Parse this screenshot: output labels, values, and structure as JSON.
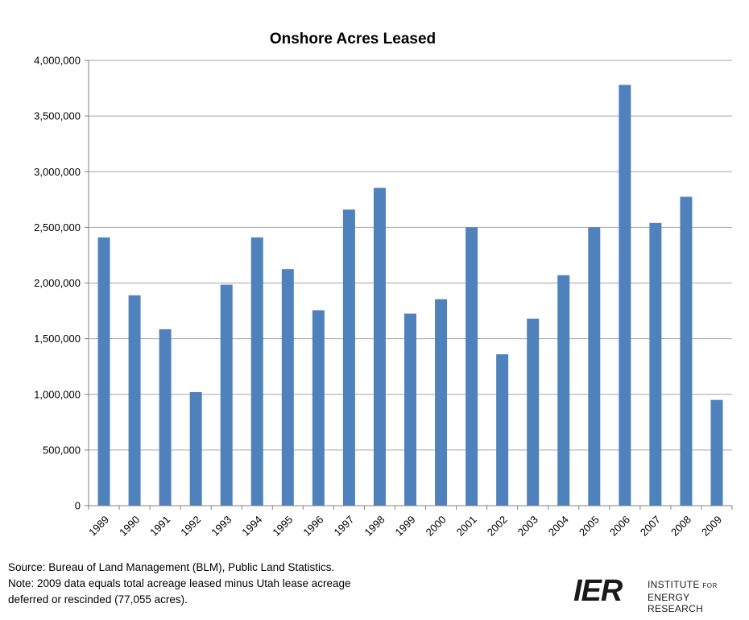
{
  "chart_data": {
    "type": "bar",
    "title": "Onshore Acres Leased",
    "categories": [
      "1989",
      "1990",
      "1991",
      "1992",
      "1993",
      "1994",
      "1995",
      "1996",
      "1997",
      "1998",
      "1999",
      "2000",
      "2001",
      "2002",
      "2003",
      "2004",
      "2005",
      "2006",
      "2007",
      "2008",
      "2009"
    ],
    "values": [
      2410000,
      1890000,
      1585000,
      1020000,
      1985000,
      2410000,
      2125000,
      1755000,
      2660000,
      2855000,
      1725000,
      1855000,
      2500000,
      1360000,
      1680000,
      2070000,
      2500000,
      3780000,
      2540000,
      2775000,
      950000
    ],
    "ylim": [
      0,
      4000000
    ],
    "yticks": [
      "0",
      "500,000",
      "1,000,000",
      "1,500,000",
      "2,000,000",
      "2,500,000",
      "3,000,000",
      "3,500,000",
      "4,000,000"
    ],
    "xlabel": "",
    "ylabel": "",
    "grid": true,
    "bar_color": "#4f81bd",
    "legend": "none"
  },
  "footnote": {
    "line1": "Source: Bureau of Land Management (BLM), Public Land Statistics.",
    "line2": "Note: 2009 data equals total acreage leased minus Utah lease acreage",
    "line3": "deferred or  rescinded (77,055 acres)."
  },
  "logo": {
    "mark": "IER",
    "line1": "INSTITUTE",
    "line1_small": "FOR",
    "line2": "ENERGY RESEARCH"
  }
}
